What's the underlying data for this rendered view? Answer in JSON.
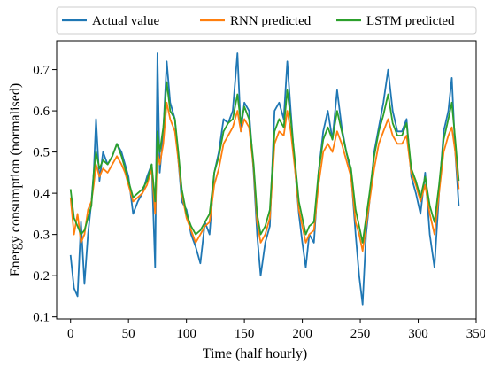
{
  "chart_data": {
    "type": "line",
    "xlabel": "Time (half hourly)",
    "ylabel": "Energy consumption (normalised)",
    "xlim": [
      -12,
      350
    ],
    "ylim": [
      0.095,
      0.77
    ],
    "xticks": [
      0,
      50,
      100,
      150,
      200,
      250,
      300,
      350
    ],
    "yticks": [
      0.1,
      0.2,
      0.3,
      0.4,
      0.5,
      0.6,
      0.7
    ],
    "legend_position": "top",
    "grid": false,
    "series": [
      {
        "name": "Actual value",
        "color": "#1f77b4",
        "keypoints": [
          [
            0,
            0.25
          ],
          [
            3,
            0.17
          ],
          [
            6,
            0.15
          ],
          [
            9,
            0.33
          ],
          [
            12,
            0.18
          ],
          [
            15,
            0.3
          ],
          [
            18,
            0.38
          ],
          [
            20,
            0.45
          ],
          [
            22,
            0.58
          ],
          [
            25,
            0.43
          ],
          [
            28,
            0.5
          ],
          [
            32,
            0.47
          ],
          [
            36,
            0.49
          ],
          [
            40,
            0.52
          ],
          [
            44,
            0.5
          ],
          [
            47,
            0.47
          ],
          [
            50,
            0.44
          ],
          [
            54,
            0.35
          ],
          [
            58,
            0.38
          ],
          [
            62,
            0.4
          ],
          [
            66,
            0.44
          ],
          [
            70,
            0.47
          ],
          [
            73,
            0.22
          ],
          [
            75,
            0.74
          ],
          [
            77,
            0.45
          ],
          [
            80,
            0.55
          ],
          [
            83,
            0.72
          ],
          [
            86,
            0.62
          ],
          [
            90,
            0.58
          ],
          [
            93,
            0.48
          ],
          [
            96,
            0.38
          ],
          [
            100,
            0.36
          ],
          [
            104,
            0.3
          ],
          [
            108,
            0.27
          ],
          [
            112,
            0.23
          ],
          [
            116,
            0.33
          ],
          [
            120,
            0.3
          ],
          [
            124,
            0.45
          ],
          [
            128,
            0.5
          ],
          [
            132,
            0.58
          ],
          [
            136,
            0.57
          ],
          [
            140,
            0.6
          ],
          [
            144,
            0.74
          ],
          [
            147,
            0.55
          ],
          [
            150,
            0.62
          ],
          [
            154,
            0.6
          ],
          [
            158,
            0.45
          ],
          [
            161,
            0.3
          ],
          [
            164,
            0.2
          ],
          [
            168,
            0.28
          ],
          [
            172,
            0.32
          ],
          [
            176,
            0.6
          ],
          [
            180,
            0.62
          ],
          [
            184,
            0.58
          ],
          [
            187,
            0.72
          ],
          [
            190,
            0.6
          ],
          [
            194,
            0.45
          ],
          [
            197,
            0.35
          ],
          [
            200,
            0.28
          ],
          [
            203,
            0.22
          ],
          [
            206,
            0.3
          ],
          [
            210,
            0.28
          ],
          [
            214,
            0.45
          ],
          [
            218,
            0.55
          ],
          [
            222,
            0.6
          ],
          [
            226,
            0.53
          ],
          [
            230,
            0.65
          ],
          [
            234,
            0.56
          ],
          [
            238,
            0.5
          ],
          [
            242,
            0.45
          ],
          [
            246,
            0.3
          ],
          [
            249,
            0.2
          ],
          [
            252,
            0.13
          ],
          [
            255,
            0.3
          ],
          [
            258,
            0.38
          ],
          [
            262,
            0.5
          ],
          [
            266,
            0.56
          ],
          [
            270,
            0.62
          ],
          [
            274,
            0.7
          ],
          [
            278,
            0.6
          ],
          [
            282,
            0.55
          ],
          [
            286,
            0.55
          ],
          [
            290,
            0.58
          ],
          [
            294,
            0.44
          ],
          [
            298,
            0.4
          ],
          [
            302,
            0.35
          ],
          [
            306,
            0.45
          ],
          [
            310,
            0.3
          ],
          [
            314,
            0.22
          ],
          [
            318,
            0.4
          ],
          [
            322,
            0.55
          ],
          [
            326,
            0.6
          ],
          [
            329,
            0.68
          ],
          [
            332,
            0.5
          ],
          [
            335,
            0.37
          ]
        ]
      },
      {
        "name": "RNN predicted",
        "color": "#ff7f0e",
        "keypoints": [
          [
            0,
            0.39
          ],
          [
            3,
            0.3
          ],
          [
            6,
            0.35
          ],
          [
            9,
            0.28
          ],
          [
            12,
            0.3
          ],
          [
            15,
            0.36
          ],
          [
            18,
            0.38
          ],
          [
            20,
            0.42
          ],
          [
            22,
            0.47
          ],
          [
            25,
            0.44
          ],
          [
            28,
            0.46
          ],
          [
            32,
            0.45
          ],
          [
            36,
            0.47
          ],
          [
            40,
            0.49
          ],
          [
            44,
            0.47
          ],
          [
            47,
            0.45
          ],
          [
            50,
            0.42
          ],
          [
            54,
            0.38
          ],
          [
            58,
            0.39
          ],
          [
            62,
            0.4
          ],
          [
            66,
            0.42
          ],
          [
            70,
            0.46
          ],
          [
            73,
            0.35
          ],
          [
            75,
            0.5
          ],
          [
            77,
            0.47
          ],
          [
            80,
            0.52
          ],
          [
            83,
            0.62
          ],
          [
            86,
            0.58
          ],
          [
            90,
            0.55
          ],
          [
            93,
            0.48
          ],
          [
            96,
            0.4
          ],
          [
            100,
            0.34
          ],
          [
            104,
            0.31
          ],
          [
            108,
            0.28
          ],
          [
            112,
            0.3
          ],
          [
            116,
            0.32
          ],
          [
            120,
            0.33
          ],
          [
            124,
            0.42
          ],
          [
            128,
            0.46
          ],
          [
            132,
            0.52
          ],
          [
            136,
            0.54
          ],
          [
            140,
            0.56
          ],
          [
            144,
            0.6
          ],
          [
            147,
            0.55
          ],
          [
            150,
            0.58
          ],
          [
            154,
            0.56
          ],
          [
            158,
            0.46
          ],
          [
            161,
            0.33
          ],
          [
            164,
            0.28
          ],
          [
            168,
            0.3
          ],
          [
            172,
            0.34
          ],
          [
            176,
            0.52
          ],
          [
            180,
            0.55
          ],
          [
            184,
            0.54
          ],
          [
            187,
            0.6
          ],
          [
            190,
            0.55
          ],
          [
            194,
            0.45
          ],
          [
            197,
            0.36
          ],
          [
            200,
            0.32
          ],
          [
            203,
            0.28
          ],
          [
            206,
            0.3
          ],
          [
            210,
            0.31
          ],
          [
            214,
            0.42
          ],
          [
            218,
            0.5
          ],
          [
            222,
            0.52
          ],
          [
            226,
            0.5
          ],
          [
            230,
            0.55
          ],
          [
            234,
            0.52
          ],
          [
            238,
            0.48
          ],
          [
            242,
            0.44
          ],
          [
            246,
            0.33
          ],
          [
            249,
            0.3
          ],
          [
            252,
            0.26
          ],
          [
            255,
            0.32
          ],
          [
            258,
            0.38
          ],
          [
            262,
            0.46
          ],
          [
            266,
            0.52
          ],
          [
            270,
            0.55
          ],
          [
            274,
            0.58
          ],
          [
            278,
            0.54
          ],
          [
            282,
            0.52
          ],
          [
            286,
            0.52
          ],
          [
            290,
            0.54
          ],
          [
            294,
            0.45
          ],
          [
            298,
            0.42
          ],
          [
            302,
            0.38
          ],
          [
            306,
            0.42
          ],
          [
            310,
            0.35
          ],
          [
            314,
            0.3
          ],
          [
            318,
            0.4
          ],
          [
            322,
            0.5
          ],
          [
            326,
            0.54
          ],
          [
            329,
            0.56
          ],
          [
            332,
            0.5
          ],
          [
            335,
            0.41
          ]
        ]
      },
      {
        "name": "LSTM predicted",
        "color": "#2ca02c",
        "keypoints": [
          [
            0,
            0.41
          ],
          [
            3,
            0.34
          ],
          [
            6,
            0.32
          ],
          [
            9,
            0.3
          ],
          [
            12,
            0.31
          ],
          [
            15,
            0.34
          ],
          [
            18,
            0.37
          ],
          [
            20,
            0.45
          ],
          [
            22,
            0.5
          ],
          [
            25,
            0.46
          ],
          [
            28,
            0.48
          ],
          [
            32,
            0.47
          ],
          [
            36,
            0.49
          ],
          [
            40,
            0.52
          ],
          [
            44,
            0.49
          ],
          [
            47,
            0.46
          ],
          [
            50,
            0.43
          ],
          [
            54,
            0.39
          ],
          [
            58,
            0.4
          ],
          [
            62,
            0.41
          ],
          [
            66,
            0.43
          ],
          [
            70,
            0.47
          ],
          [
            73,
            0.38
          ],
          [
            75,
            0.55
          ],
          [
            77,
            0.5
          ],
          [
            80,
            0.56
          ],
          [
            83,
            0.67
          ],
          [
            86,
            0.6
          ],
          [
            90,
            0.58
          ],
          [
            93,
            0.5
          ],
          [
            96,
            0.41
          ],
          [
            100,
            0.35
          ],
          [
            104,
            0.32
          ],
          [
            108,
            0.3
          ],
          [
            112,
            0.31
          ],
          [
            116,
            0.33
          ],
          [
            120,
            0.35
          ],
          [
            124,
            0.45
          ],
          [
            128,
            0.49
          ],
          [
            132,
            0.55
          ],
          [
            136,
            0.57
          ],
          [
            140,
            0.58
          ],
          [
            144,
            0.64
          ],
          [
            147,
            0.57
          ],
          [
            150,
            0.61
          ],
          [
            154,
            0.58
          ],
          [
            158,
            0.47
          ],
          [
            161,
            0.35
          ],
          [
            164,
            0.3
          ],
          [
            168,
            0.32
          ],
          [
            172,
            0.36
          ],
          [
            176,
            0.55
          ],
          [
            180,
            0.58
          ],
          [
            184,
            0.56
          ],
          [
            187,
            0.65
          ],
          [
            190,
            0.58
          ],
          [
            194,
            0.47
          ],
          [
            197,
            0.38
          ],
          [
            200,
            0.34
          ],
          [
            203,
            0.3
          ],
          [
            206,
            0.32
          ],
          [
            210,
            0.33
          ],
          [
            214,
            0.45
          ],
          [
            218,
            0.53
          ],
          [
            222,
            0.56
          ],
          [
            226,
            0.53
          ],
          [
            230,
            0.6
          ],
          [
            234,
            0.55
          ],
          [
            238,
            0.5
          ],
          [
            242,
            0.46
          ],
          [
            246,
            0.36
          ],
          [
            249,
            0.32
          ],
          [
            252,
            0.28
          ],
          [
            255,
            0.34
          ],
          [
            258,
            0.4
          ],
          [
            262,
            0.49
          ],
          [
            266,
            0.55
          ],
          [
            270,
            0.59
          ],
          [
            274,
            0.64
          ],
          [
            278,
            0.57
          ],
          [
            282,
            0.54
          ],
          [
            286,
            0.54
          ],
          [
            290,
            0.57
          ],
          [
            294,
            0.46
          ],
          [
            298,
            0.43
          ],
          [
            302,
            0.39
          ],
          [
            306,
            0.44
          ],
          [
            310,
            0.37
          ],
          [
            314,
            0.33
          ],
          [
            318,
            0.42
          ],
          [
            322,
            0.53
          ],
          [
            326,
            0.58
          ],
          [
            329,
            0.62
          ],
          [
            332,
            0.53
          ],
          [
            335,
            0.43
          ]
        ]
      }
    ]
  }
}
